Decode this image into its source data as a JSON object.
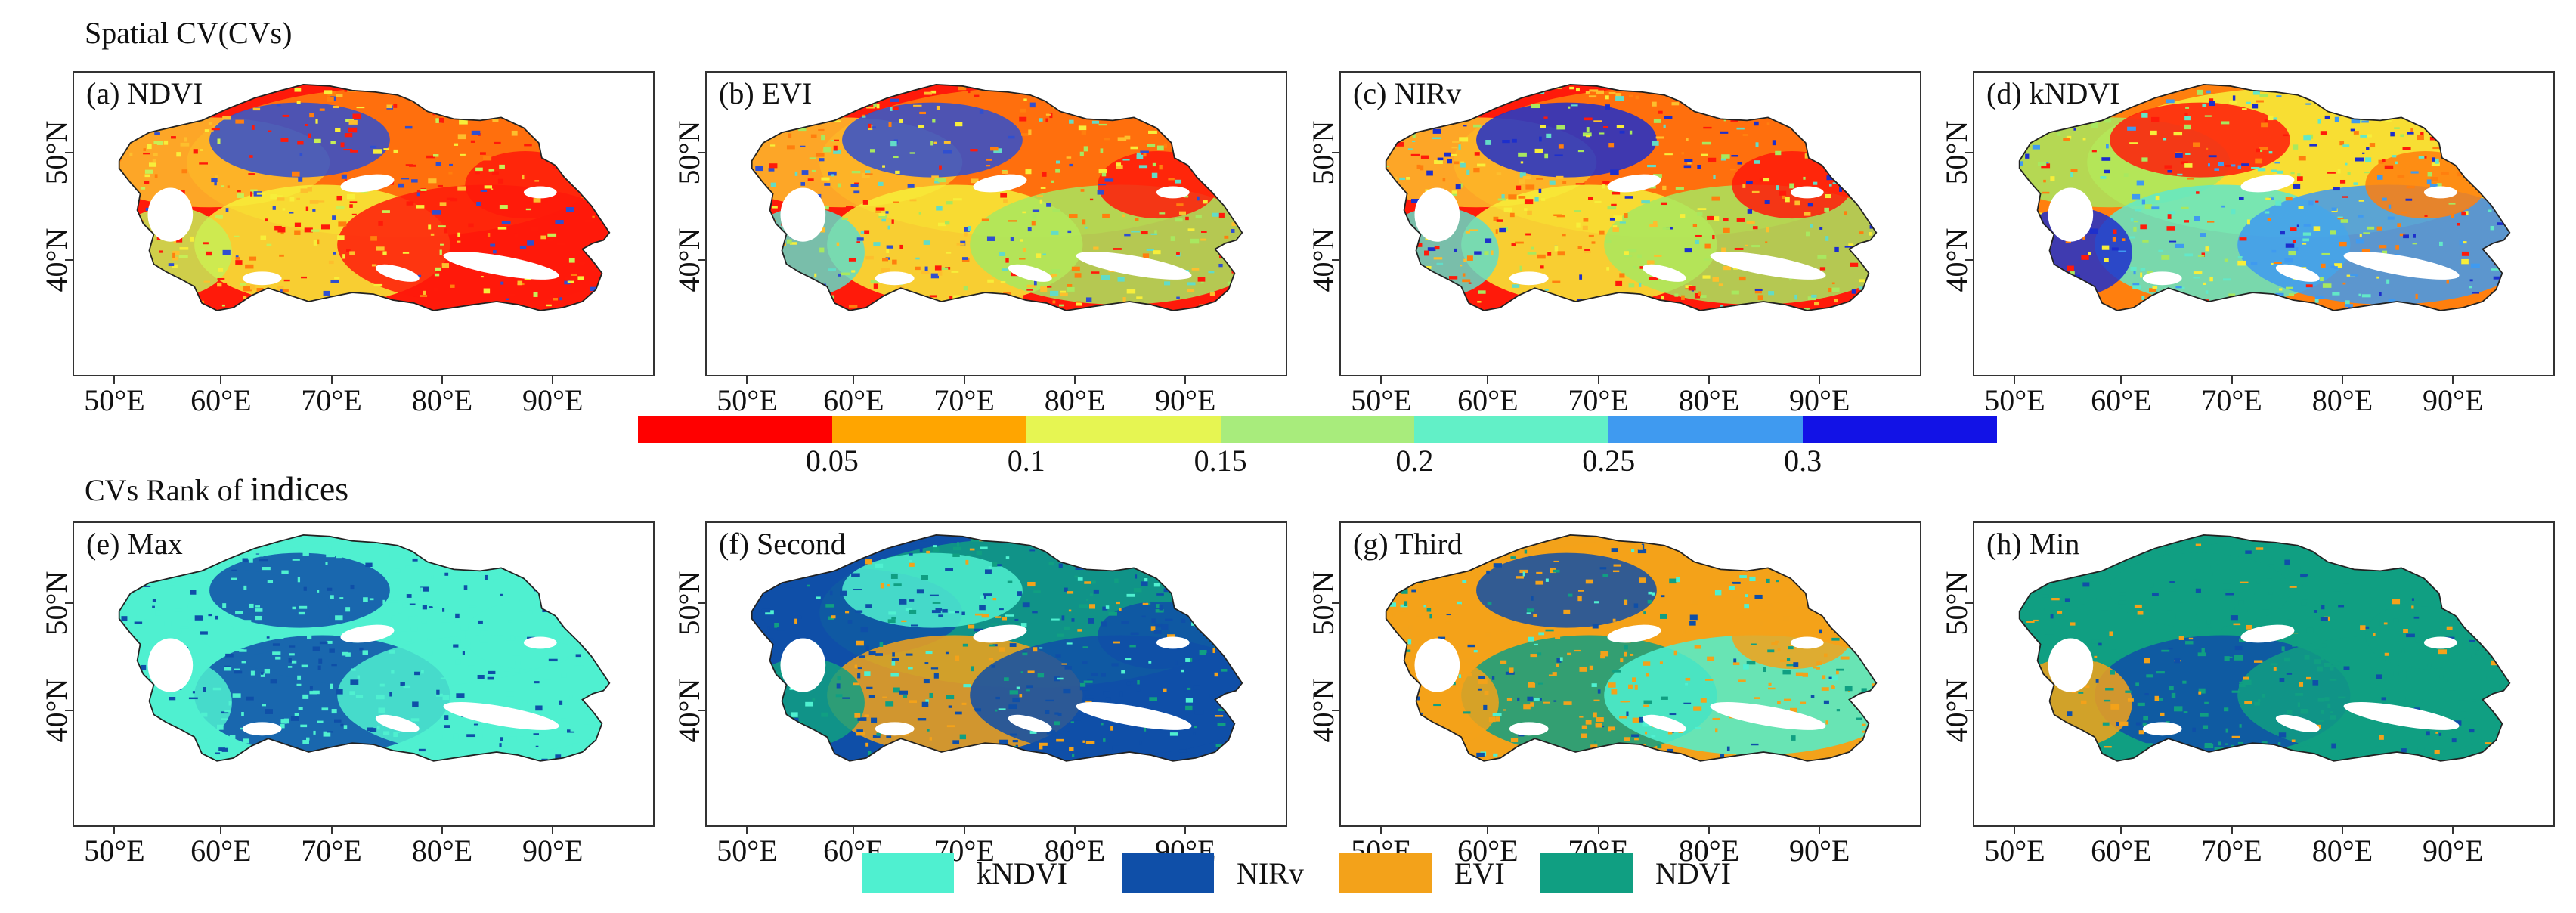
{
  "title_top": "Spatial CV(CVs)",
  "title_bottom": {
    "part1": "CVs Rank of",
    "part2": "indices"
  },
  "lat_labels": [
    "50°N",
    "40°N"
  ],
  "lon_labels": [
    "50°E",
    "60°E",
    "70°E",
    "80°E",
    "90°E"
  ],
  "panels": [
    {
      "label": "(a) NDVI",
      "palette": [
        "#ff1a0a",
        "#ff7f0e",
        "#fdbf2d",
        "#f7ee3a",
        "#ff1a0a",
        "#c7ef56",
        "#2f4fd0"
      ]
    },
    {
      "label": "(b) EVI",
      "palette": [
        "#ff1a0a",
        "#ff7f0e",
        "#fdbf2d",
        "#f7ee3a",
        "#a8e85f",
        "#62dcc7",
        "#2f4fd0"
      ]
    },
    {
      "label": "(c) NIRv",
      "palette": [
        "#ff1a0a",
        "#ff7f0e",
        "#fdbf2d",
        "#f7ee3a",
        "#a8e85f",
        "#62dcc7",
        "#1d2fcc"
      ]
    },
    {
      "label": "(d) kNDVI",
      "palette": [
        "#ff7f0e",
        "#f7ee3a",
        "#a8e85f",
        "#62e8c8",
        "#3f9af0",
        "#1d2fcc",
        "#ff1a0a"
      ]
    },
    {
      "label": "(e) Max",
      "palette": [
        "#4ff0d0",
        "#4ff0d0",
        "#4ff0d0",
        "#0f4fa8",
        "#4ff0d0",
        "#4ff0d0",
        "#0f4fa8"
      ]
    },
    {
      "label": "(f) Second",
      "palette": [
        "#0f4fa8",
        "#109f82",
        "#0f4fa8",
        "#f3a21a",
        "#0f4fa8",
        "#109f82",
        "#4ff0d0"
      ]
    },
    {
      "label": "(g) Third",
      "palette": [
        "#f3a21a",
        "#f3a21a",
        "#f3a21a",
        "#109f82",
        "#4ff0d0",
        "#f3a21a",
        "#0f4fa8"
      ]
    },
    {
      "label": "(h) Min",
      "palette": [
        "#109f82",
        "#109f82",
        "#109f82",
        "#0f4fa8",
        "#109f82",
        "#f3a21a",
        "#109f82"
      ]
    }
  ],
  "colorbar": {
    "colors": [
      "#ff0000",
      "#ffa500",
      "#e6f552",
      "#a8ec7c",
      "#62f0c7",
      "#3f9af0",
      "#1212e6"
    ],
    "ticks": [
      "0.05",
      "0.1",
      "0.15",
      "0.2",
      "0.25",
      "0.3"
    ]
  },
  "legend": [
    {
      "label": "kNDVI",
      "color": "#4ff0d0"
    },
    {
      "label": "NIRv",
      "color": "#0f4fa8"
    },
    {
      "label": "EVI",
      "color": "#f3a21a"
    },
    {
      "label": "NDVI",
      "color": "#109f82"
    }
  ]
}
